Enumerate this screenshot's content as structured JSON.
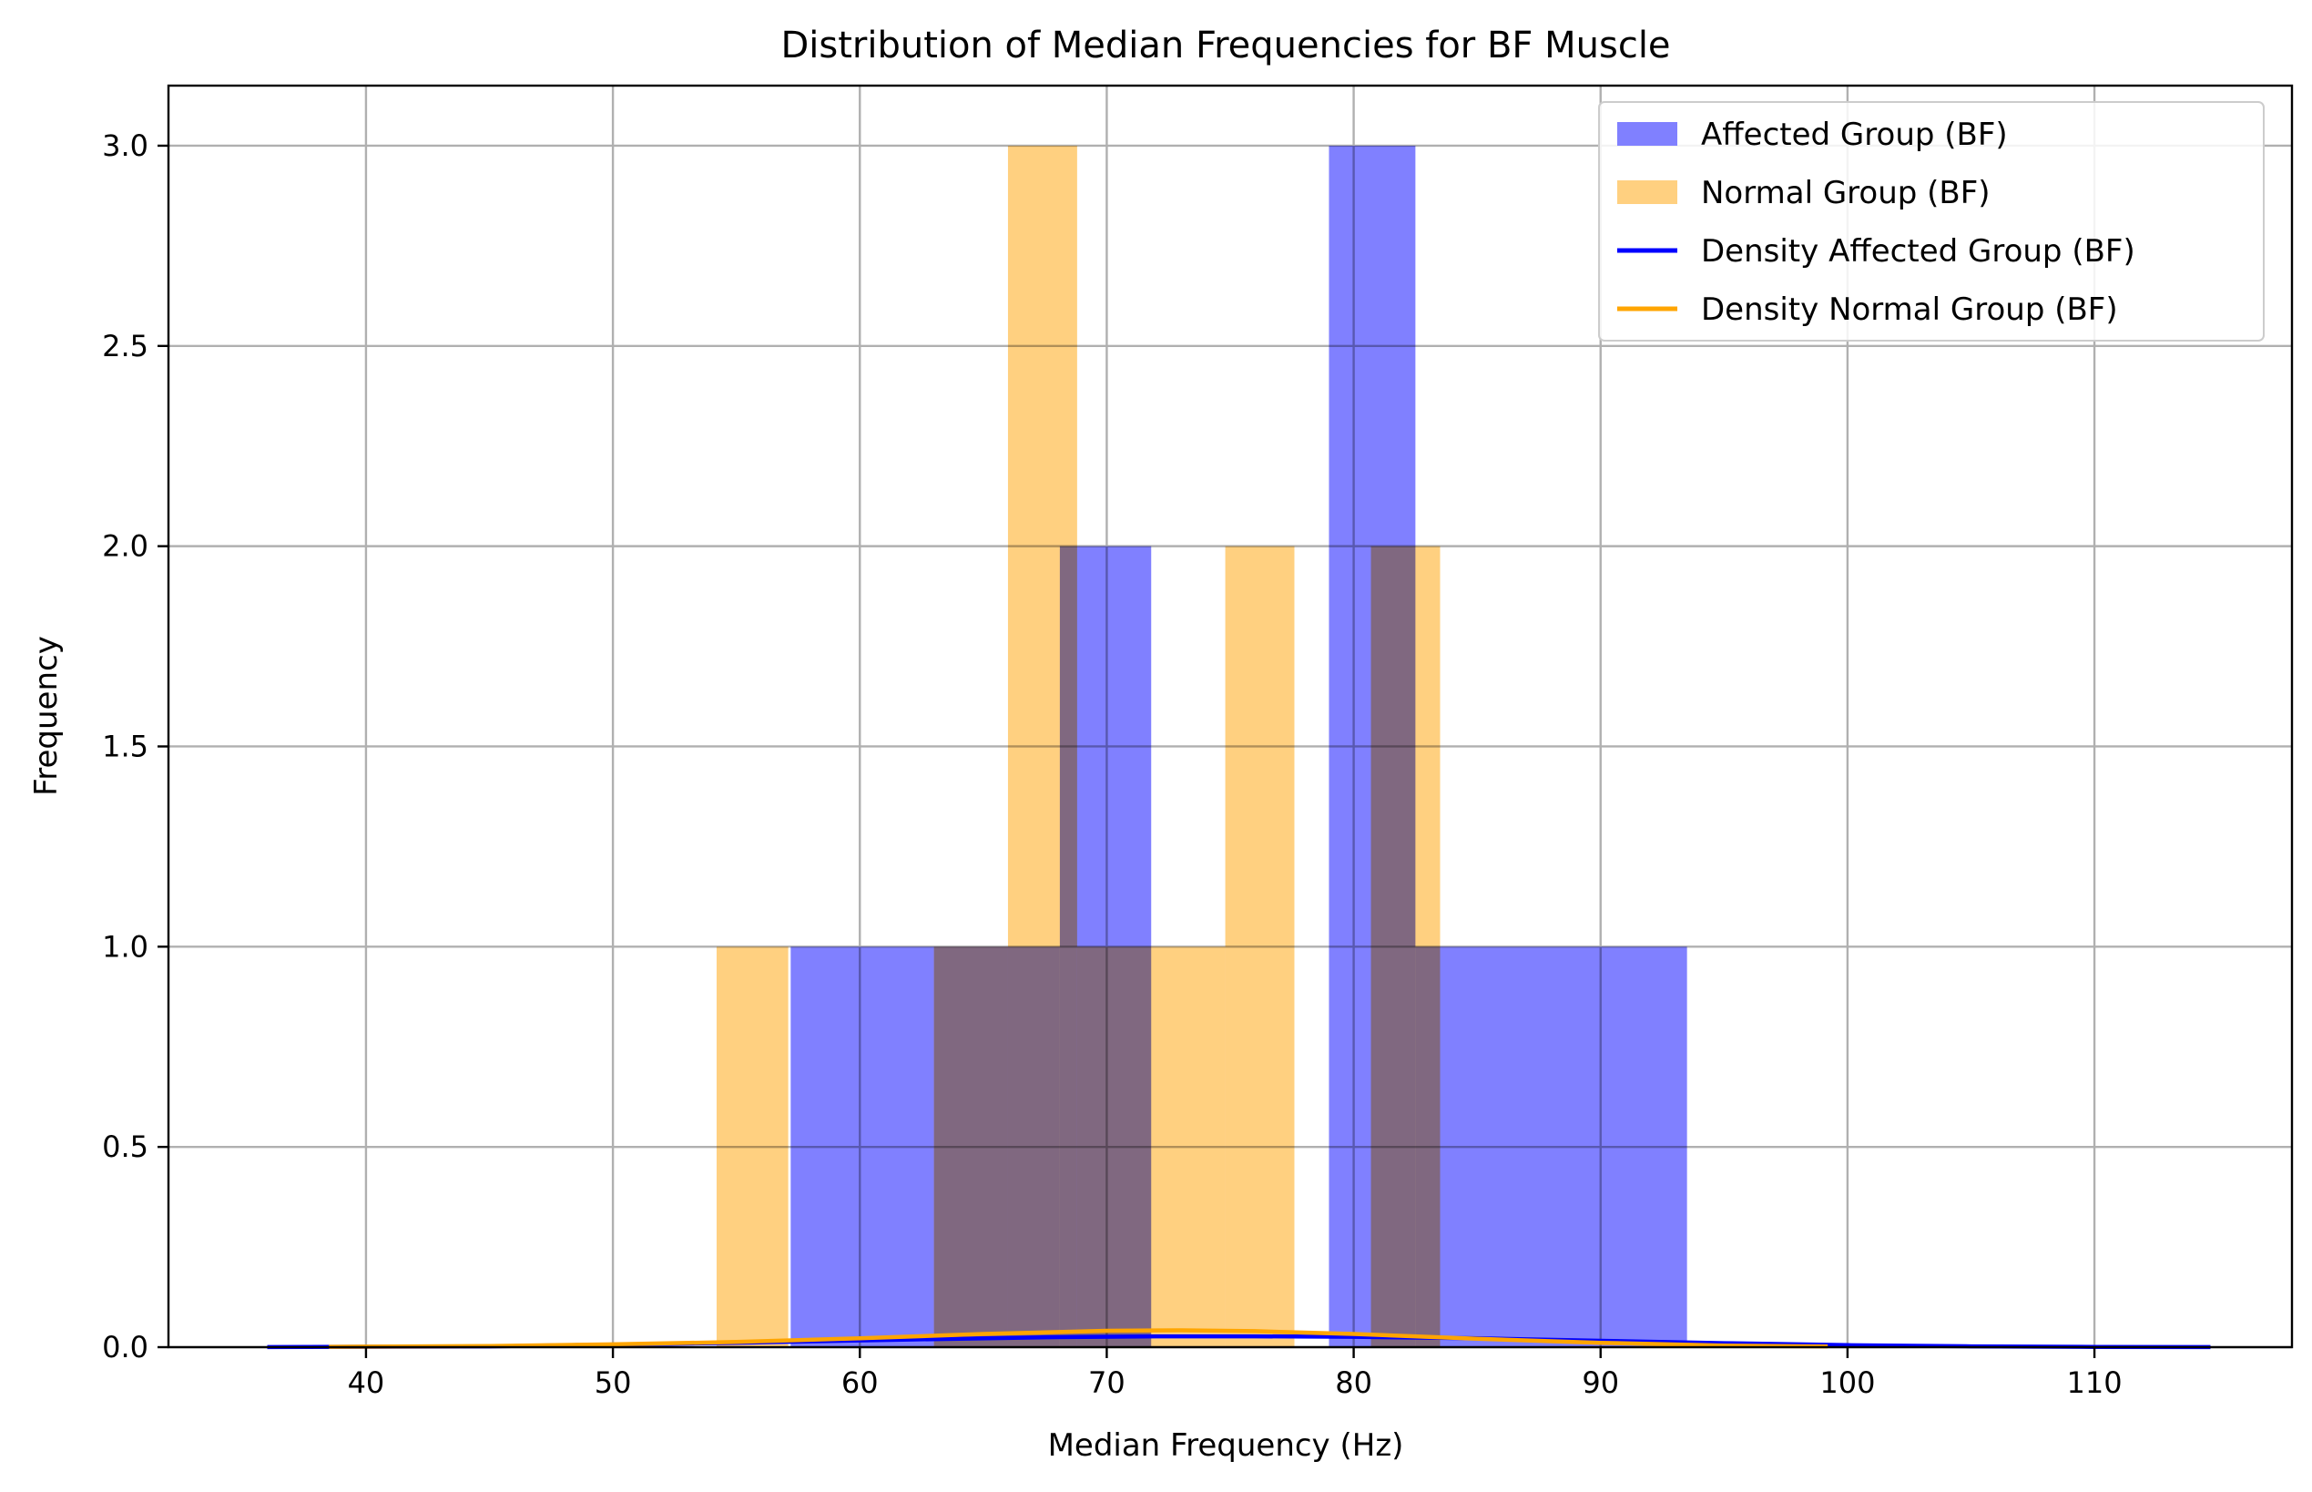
{
  "chart_data": {
    "type": "bar",
    "title": "Distribution of Median Frequencies for BF Muscle",
    "xlabel": "Median Frequency (Hz)",
    "ylabel": "Frequency",
    "xlim": [
      32,
      118
    ],
    "ylim": [
      0,
      3.15
    ],
    "xticks": [
      40,
      50,
      60,
      70,
      80,
      90,
      100,
      110
    ],
    "yticks": [
      0.0,
      0.5,
      1.0,
      1.5,
      2.0,
      2.5,
      3.0
    ],
    "xtick_labels": [
      "40",
      "50",
      "60",
      "70",
      "80",
      "90",
      "100",
      "110"
    ],
    "ytick_labels": [
      "0.0",
      "0.5",
      "1.0",
      "1.5",
      "2.0",
      "2.5",
      "3.0"
    ],
    "grid": true,
    "legend_position": "top-right",
    "series": [
      {
        "name": "Affected Group (BF)",
        "kind": "histogram",
        "color": "#8080ff",
        "bins": [
          {
            "x0": 57.2,
            "x1": 63.0,
            "count": 1
          },
          {
            "x0": 63.0,
            "x1": 68.1,
            "count": 1
          },
          {
            "x0": 68.1,
            "x1": 71.8,
            "count": 2
          },
          {
            "x0": 79.0,
            "x1": 82.5,
            "count": 3
          },
          {
            "x0": 82.5,
            "x1": 93.5,
            "count": 1
          }
        ]
      },
      {
        "name": "Normal Group (BF)",
        "kind": "histogram",
        "color": "#ffd080",
        "bins": [
          {
            "x0": 54.2,
            "x1": 57.1,
            "count": 1
          },
          {
            "x0": 63.0,
            "x1": 66.0,
            "count": 1
          },
          {
            "x0": 66.0,
            "x1": 68.8,
            "count": 3
          },
          {
            "x0": 68.8,
            "x1": 74.8,
            "count": 1
          },
          {
            "x0": 74.8,
            "x1": 77.6,
            "count": 2
          },
          {
            "x0": 80.7,
            "x1": 83.5,
            "count": 2
          }
        ]
      },
      {
        "name": "Density Affected Group (BF)",
        "kind": "line",
        "color": "#0000ff",
        "x": [
          36,
          45,
          55,
          62,
          68,
          72,
          76,
          80,
          85,
          90,
          95,
          100,
          105,
          110,
          114.7
        ],
        "y": [
          0.0002,
          0.002,
          0.011,
          0.019,
          0.025,
          0.027,
          0.027,
          0.026,
          0.022,
          0.016,
          0.01,
          0.005,
          0.002,
          0.0007,
          0.0002
        ]
      },
      {
        "name": "Density Normal Group (BF)",
        "kind": "line",
        "color": "#ffa500",
        "x": [
          38.5,
          45,
          50,
          55,
          60,
          65,
          70,
          73,
          76,
          80,
          85,
          90,
          95,
          99.2
        ],
        "y": [
          0.0008,
          0.003,
          0.007,
          0.013,
          0.022,
          0.033,
          0.041,
          0.042,
          0.04,
          0.033,
          0.021,
          0.011,
          0.004,
          0.0015
        ]
      }
    ]
  }
}
